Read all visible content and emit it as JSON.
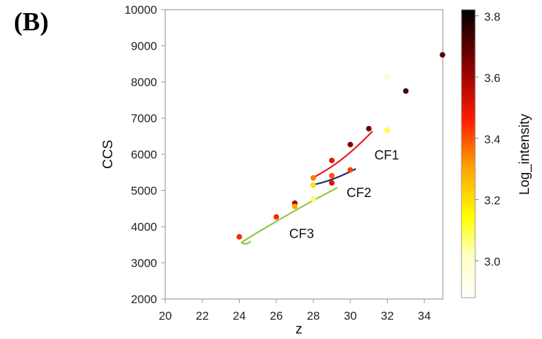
{
  "panel_label": "(B)",
  "chart_data": {
    "type": "scatter",
    "title": "",
    "xlabel": "z",
    "ylabel": "CCS",
    "xlim": [
      20,
      35
    ],
    "ylim": [
      2000,
      10000
    ],
    "xticks": [
      20,
      22,
      24,
      26,
      28,
      30,
      32,
      34
    ],
    "yticks": [
      2000,
      3000,
      4000,
      5000,
      6000,
      7000,
      8000,
      9000,
      10000
    ],
    "grid": false,
    "colorbar": {
      "label": "Log_intensity",
      "range": [
        2.88,
        3.82
      ],
      "ticks": [
        "3.0",
        "3.2",
        "3.4",
        "3.6",
        "3.8"
      ],
      "colormap": [
        "#ffffff",
        "#ffff00",
        "#ff7f00",
        "#ff0000",
        "#7a0000",
        "#000000"
      ]
    },
    "points": [
      {
        "z": 24,
        "ccs": 3720,
        "log_intensity": 3.45
      },
      {
        "z": 26,
        "ccs": 4270,
        "log_intensity": 3.45
      },
      {
        "z": 27,
        "ccs": 4650,
        "log_intensity": 3.58
      },
      {
        "z": 27,
        "ccs": 4560,
        "log_intensity": 3.3
      },
      {
        "z": 28,
        "ccs": 4760,
        "log_intensity": 3.08
      },
      {
        "z": 28,
        "ccs": 5150,
        "log_intensity": 3.2
      },
      {
        "z": 28,
        "ccs": 5350,
        "log_intensity": 3.35
      },
      {
        "z": 29,
        "ccs": 5830,
        "log_intensity": 3.5
      },
      {
        "z": 29,
        "ccs": 5410,
        "log_intensity": 3.4
      },
      {
        "z": 29,
        "ccs": 5210,
        "log_intensity": 3.5
      },
      {
        "z": 30,
        "ccs": 6270,
        "log_intensity": 3.65
      },
      {
        "z": 30,
        "ccs": 5570,
        "log_intensity": 3.42
      },
      {
        "z": 31,
        "ccs": 6710,
        "log_intensity": 3.66
      },
      {
        "z": 32,
        "ccs": 8140,
        "log_intensity": 2.95
      },
      {
        "z": 32,
        "ccs": 6670,
        "log_intensity": 3.1
      },
      {
        "z": 33,
        "ccs": 7750,
        "log_intensity": 3.72
      },
      {
        "z": 35,
        "ccs": 8750,
        "log_intensity": 3.7
      }
    ],
    "annotations": [
      {
        "text": "CF1",
        "color": "#e8161b",
        "curve": [
          [
            28,
            5360
          ],
          [
            29,
            5620
          ],
          [
            30,
            6000
          ],
          [
            31.2,
            6640
          ]
        ],
        "label_at": [
          31.3,
          5860
        ]
      },
      {
        "text": "CF2",
        "color": "#1b2a6b",
        "curve": [
          [
            28,
            5160
          ],
          [
            29,
            5260
          ],
          [
            30.3,
            5600
          ]
        ],
        "label_at": [
          29.8,
          4820
        ]
      },
      {
        "text": "CF3",
        "color": "#8cc63f",
        "curve": [
          [
            29.3,
            5080
          ],
          [
            26.5,
            4330
          ],
          [
            24.1,
            3560
          ]
        ],
        "label_at": [
          26.7,
          3690
        ]
      }
    ]
  }
}
